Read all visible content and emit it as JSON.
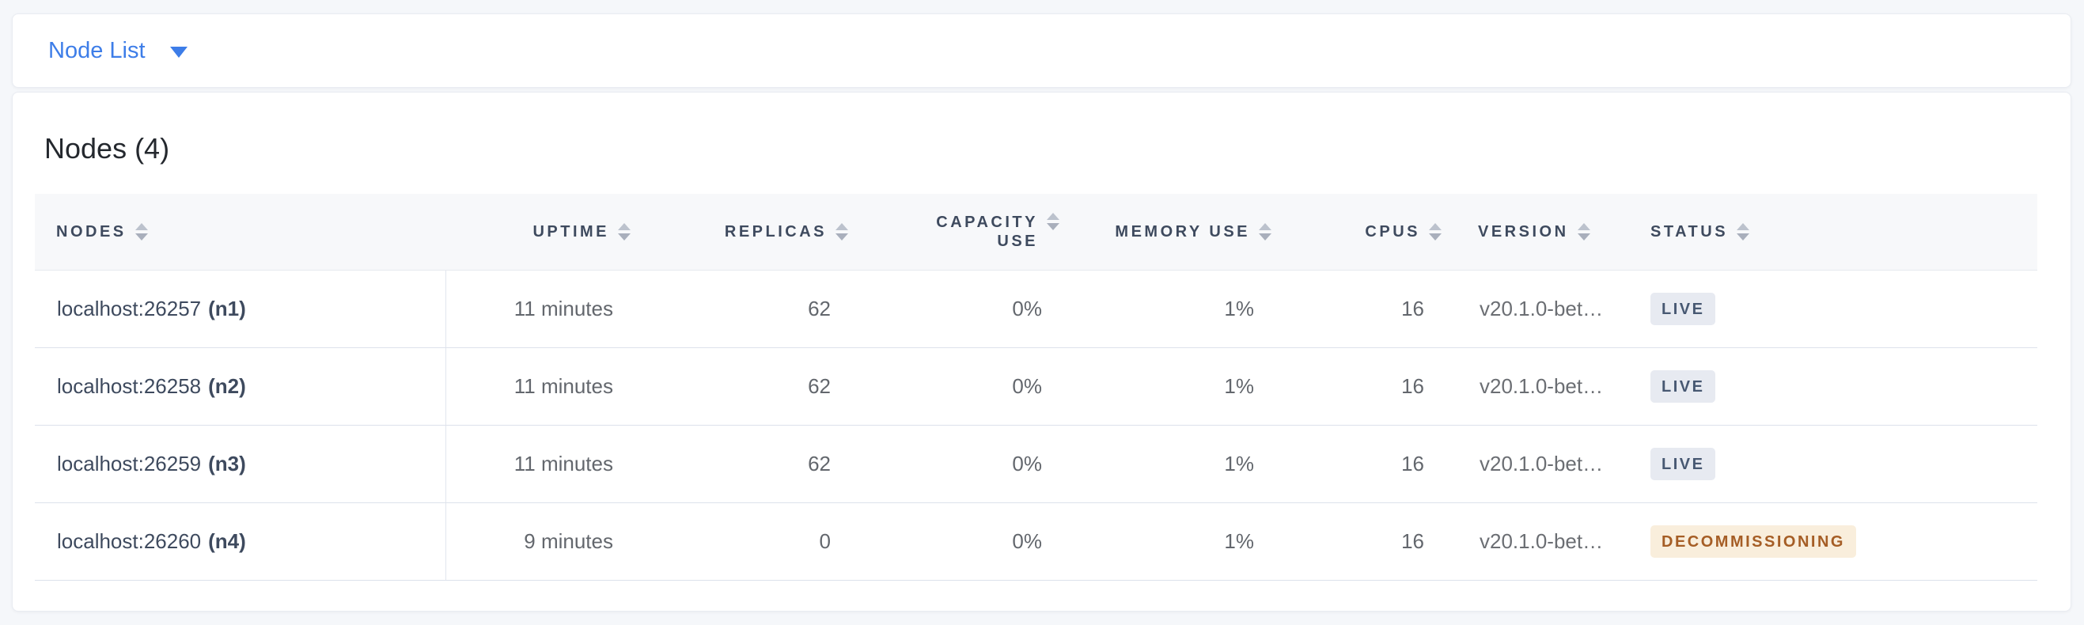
{
  "view_selector": {
    "label": "Node List"
  },
  "panel": {
    "title": "Nodes (4)"
  },
  "table": {
    "columns": [
      {
        "label": "NODES",
        "align": "left",
        "sortable": true
      },
      {
        "label": "UPTIME",
        "align": "right",
        "sortable": true
      },
      {
        "label": "REPLICAS",
        "align": "right",
        "sortable": true
      },
      {
        "label": "CAPACITY USE",
        "align": "right",
        "sortable": true
      },
      {
        "label": "MEMORY USE",
        "align": "right",
        "sortable": true
      },
      {
        "label": "CPUS",
        "align": "right",
        "sortable": true
      },
      {
        "label": "VERSION",
        "align": "left",
        "sortable": true
      },
      {
        "label": "STATUS",
        "align": "left",
        "sortable": true
      }
    ],
    "rows": [
      {
        "address": "localhost:26257",
        "name": "(n1)",
        "uptime": "11 minutes",
        "replicas": "62",
        "capacity_use": "0%",
        "memory_use": "1%",
        "cpus": "16",
        "version": "v20.1.0-bet…",
        "status": "LIVE",
        "status_type": "live"
      },
      {
        "address": "localhost:26258",
        "name": "(n2)",
        "uptime": "11 minutes",
        "replicas": "62",
        "capacity_use": "0%",
        "memory_use": "1%",
        "cpus": "16",
        "version": "v20.1.0-bet…",
        "status": "LIVE",
        "status_type": "live"
      },
      {
        "address": "localhost:26259",
        "name": "(n3)",
        "uptime": "11 minutes",
        "replicas": "62",
        "capacity_use": "0%",
        "memory_use": "1%",
        "cpus": "16",
        "version": "v20.1.0-bet…",
        "status": "LIVE",
        "status_type": "live"
      },
      {
        "address": "localhost:26260",
        "name": "(n4)",
        "uptime": "9 minutes",
        "replicas": "0",
        "capacity_use": "0%",
        "memory_use": "1%",
        "cpus": "16",
        "version": "v20.1.0-bet…",
        "status": "DECOMMISSIONING",
        "status_type": "decommissioning"
      }
    ]
  },
  "colors": {
    "page_background": "#F5F7FA",
    "accent_blue": "#3D7DE8",
    "header_text": "#3E4A5E",
    "body_text": "#63676D",
    "live_badge_bg": "#E7EAF1",
    "live_badge_text": "#475872",
    "decommissioning_badge_bg": "#F9EEDC",
    "decommissioning_badge_text": "#A55D25"
  }
}
